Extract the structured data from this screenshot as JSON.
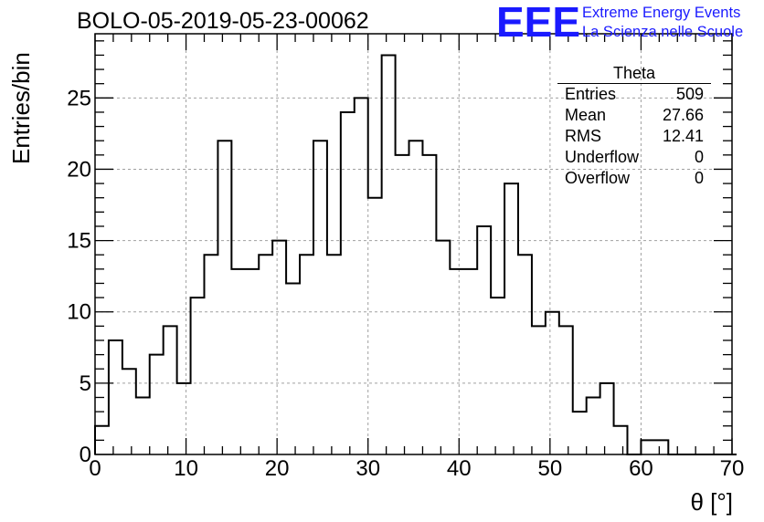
{
  "title": "BOLO-05-2019-05-23-00062",
  "logo": {
    "mark": "EEE",
    "line1": "Extreme Energy Events",
    "line2": "La Scienza nelle Scuole",
    "color": "#1a1aff"
  },
  "stats_box": {
    "title": "Theta",
    "rows": [
      {
        "label": "Entries",
        "value": "509"
      },
      {
        "label": "Mean",
        "value": "27.66"
      },
      {
        "label": "RMS",
        "value": "12.41"
      },
      {
        "label": "Underflow",
        "value": "0"
      },
      {
        "label": "Overflow",
        "value": "0"
      }
    ]
  },
  "chart_data": {
    "type": "bar",
    "style": "step-histogram",
    "title": "BOLO-05-2019-05-23-00062",
    "xlabel": "θ [°]",
    "ylabel": "Entries/bin",
    "xlim": [
      0,
      70
    ],
    "ylim": [
      0,
      29.5
    ],
    "grid": true,
    "x_ticks": [
      0,
      10,
      20,
      30,
      40,
      50,
      60,
      70
    ],
    "y_ticks": [
      0,
      5,
      10,
      15,
      20,
      25
    ],
    "bin_width": 1.5,
    "bin_edges_start": 0,
    "values": [
      2,
      8,
      6,
      4,
      7,
      9,
      5,
      11,
      14,
      22,
      13,
      13,
      14,
      15,
      12,
      14,
      22,
      14,
      24,
      25,
      18,
      28,
      21,
      22,
      21,
      15,
      13,
      13,
      16,
      11,
      19,
      14,
      9,
      10,
      9,
      3,
      4,
      5,
      2,
      0,
      1,
      1,
      0,
      0,
      0,
      0,
      0
    ]
  }
}
